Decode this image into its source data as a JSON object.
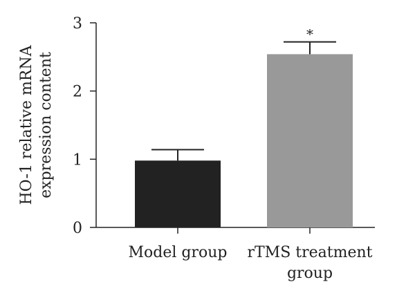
{
  "chart_data": {
    "type": "bar",
    "categories": [
      [
        "Model group"
      ],
      [
        "rTMS treatment",
        "group"
      ]
    ],
    "values": [
      0.98,
      2.54
    ],
    "errors": [
      0.16,
      0.18
    ],
    "significance": [
      "",
      "*"
    ],
    "bar_colors": [
      "#222222",
      "#999999"
    ],
    "ylabel": [
      "HO-1 relative mRNA",
      "expression content"
    ],
    "yticks": [
      0,
      1,
      2,
      3
    ],
    "ylim": [
      0,
      3
    ],
    "grid": false,
    "legend": "none"
  }
}
